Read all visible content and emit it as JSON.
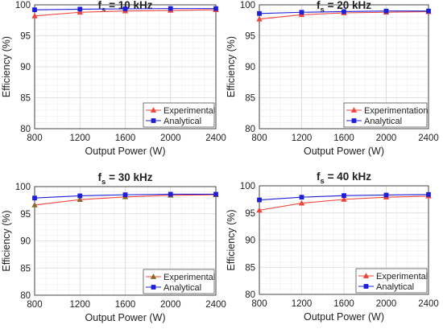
{
  "colors": {
    "experimental": "#f0443a",
    "experimental_marker_panel3": "#8a6a2a",
    "analytical": "#1f1fd8",
    "grid_minor": "#eeeeee",
    "grid_major": "#d8d8d8",
    "axis": "#333333"
  },
  "chart_data": [
    {
      "type": "line",
      "title_main": "f",
      "title_sub": "s",
      "title_rest": " = 10 kHz",
      "xlabel": "Output Power (W)",
      "ylabel": "Efficiency (%)",
      "xlim": [
        800,
        2400
      ],
      "ylim": [
        80,
        100
      ],
      "xticks": [
        "800",
        "1200",
        "1600",
        "2000",
        "2400"
      ],
      "yticks": [
        "80",
        "85",
        "90",
        "95",
        "100"
      ],
      "grid": true,
      "legend_position": "bottom-right",
      "series": [
        {
          "name": "Experimental",
          "marker": "triangle",
          "x": [
            800,
            1200,
            1600,
            2000,
            2400
          ],
          "y": [
            98.2,
            98.8,
            99.0,
            99.1,
            99.2
          ]
        },
        {
          "name": "Analytical",
          "marker": "square",
          "x": [
            800,
            1200,
            1600,
            2000,
            2400
          ],
          "y": [
            99.2,
            99.3,
            99.35,
            99.4,
            99.4
          ]
        }
      ]
    },
    {
      "type": "line",
      "title_main": "f",
      "title_sub": "s",
      "title_rest": " = 20 kHz",
      "xlabel": "Output Power (W)",
      "ylabel": "Efficiency (%)",
      "xlim": [
        800,
        2400
      ],
      "ylim": [
        80,
        100
      ],
      "xticks": [
        "800",
        "1200",
        "1600",
        "2000",
        "2400"
      ],
      "yticks": [
        "80",
        "85",
        "90",
        "95",
        "100"
      ],
      "grid": true,
      "legend_position": "bottom-right",
      "series": [
        {
          "name": "Experimentation",
          "marker": "triangle",
          "x": [
            800,
            1200,
            1600,
            2000,
            2400
          ],
          "y": [
            97.7,
            98.4,
            98.7,
            98.8,
            98.9
          ]
        },
        {
          "name": "Analytical",
          "marker": "square",
          "x": [
            800,
            1200,
            1600,
            2000,
            2400
          ],
          "y": [
            98.6,
            98.8,
            98.9,
            99.0,
            99.0
          ]
        }
      ]
    },
    {
      "type": "line",
      "title_main": "f",
      "title_sub": "s",
      "title_rest": " = 30 kHz",
      "xlabel": "Output Power (W)",
      "ylabel": "Efficiency (%)",
      "xlim": [
        800,
        2400
      ],
      "ylim": [
        80,
        100
      ],
      "xticks": [
        "800",
        "1200",
        "1600",
        "2000",
        "2400"
      ],
      "yticks": [
        "80",
        "85",
        "90",
        "95",
        "100"
      ],
      "grid": true,
      "legend_position": "bottom-right",
      "series": [
        {
          "name": "Experimental",
          "marker": "triangle",
          "x": [
            800,
            1200,
            1600,
            2000,
            2400
          ],
          "y": [
            96.6,
            97.6,
            98.1,
            98.4,
            98.5
          ]
        },
        {
          "name": "Analytical",
          "marker": "square",
          "x": [
            800,
            1200,
            1600,
            2000,
            2400
          ],
          "y": [
            97.9,
            98.3,
            98.5,
            98.6,
            98.6
          ]
        }
      ]
    },
    {
      "type": "line",
      "title_main": "f",
      "title_sub": "s",
      "title_rest": " = 40 kHz",
      "xlabel": "Output Power (W)",
      "ylabel": "Efficiency (%)",
      "xlim": [
        800,
        2400
      ],
      "ylim": [
        80,
        100
      ],
      "xticks": [
        "800",
        "1200",
        "1600",
        "2000",
        "2400"
      ],
      "yticks": [
        "80",
        "85",
        "90",
        "95",
        "100"
      ],
      "grid": true,
      "legend_position": "bottom-right",
      "series": [
        {
          "name": "Experimental",
          "marker": "triangle",
          "x": [
            800,
            1200,
            1600,
            2000,
            2400
          ],
          "y": [
            95.5,
            96.8,
            97.5,
            97.9,
            98.1
          ]
        },
        {
          "name": "Analytical",
          "marker": "square",
          "x": [
            800,
            1200,
            1600,
            2000,
            2400
          ],
          "y": [
            97.4,
            97.9,
            98.2,
            98.3,
            98.4
          ]
        }
      ]
    }
  ]
}
